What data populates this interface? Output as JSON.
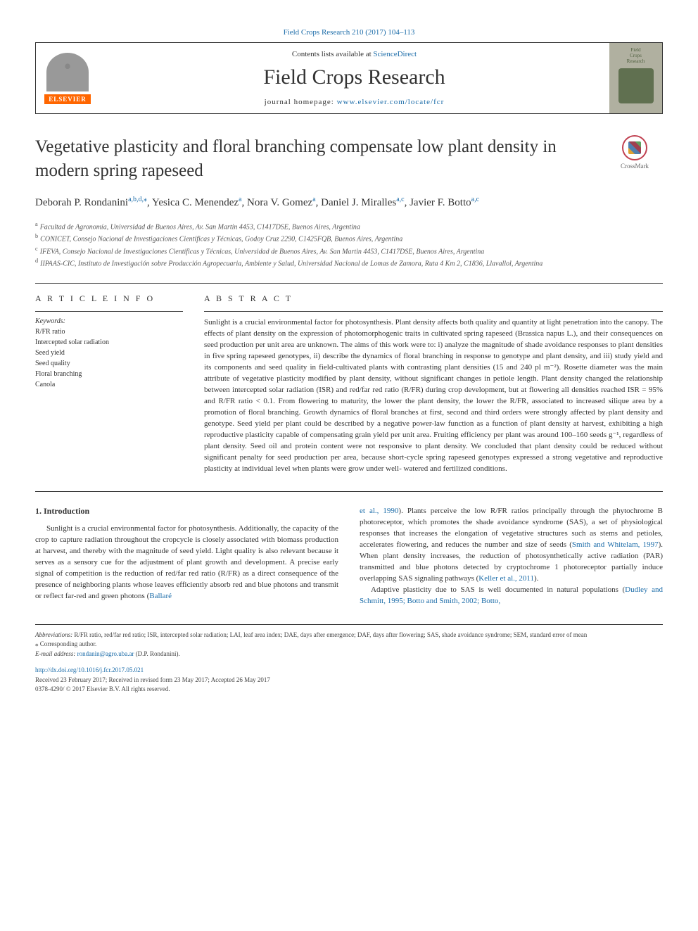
{
  "journal_ref": "Field Crops Research 210 (2017) 104–113",
  "contents_at": "Contents lists available at ",
  "sciencedirect": "ScienceDirect",
  "journal_name": "Field Crops Research",
  "homepage_label": "journal homepage: ",
  "homepage_url": "www.elsevier.com/locate/fcr",
  "elsevier": "ELSEVIER",
  "cover_text1": "Field",
  "cover_text2": "Crops",
  "cover_text3": "Research",
  "article_title": "Vegetative plasticity and floral branching compensate low plant density in modern spring rapeseed",
  "crossmark": "CrossMark",
  "authors": {
    "a1": "Deborah P. Rondanini",
    "a1_aff": "a,b,d,",
    "a1_corr": "⁎",
    "a2": "Yesica C. Menendez",
    "a2_aff": "a",
    "a3": "Nora V. Gomez",
    "a3_aff": "a",
    "a4": "Daniel J. Miralles",
    "a4_aff": "a,c",
    "a5": "Javier F. Botto",
    "a5_aff": "a,c"
  },
  "affiliations": {
    "a": "Facultad de Agronomía, Universidad de Buenos Aires, Av. San Martin 4453, C1417DSE, Buenos Aires, Argentina",
    "b": "CONICET, Consejo Nacional de Investigaciones Científicas y Técnicas, Godoy Cruz 2290, C1425FQB, Buenos Aires, Argentina",
    "c": "IFEVA, Consejo Nacional de Investigaciones Científicas y Técnicas, Universidad de Buenos Aires, Av. San Martin 4453, C1417DSE, Buenos Aires, Argentina",
    "d": "IIPAAS-CIC, Instituto de Investigación sobre Producción Agropecuaria, Ambiente y Salud, Universidad Nacional de Lomas de Zamora, Ruta 4 Km 2, C1836, Llavallol, Argentina"
  },
  "article_info_heading": "A R T I C L E  I N F O",
  "keywords_label": "Keywords:",
  "keywords": [
    "R/FR ratio",
    "Intercepted solar radiation",
    "Seed yield",
    "Seed quality",
    "Floral branching",
    "Canola"
  ],
  "abstract_heading": "A B S T R A C T",
  "abstract": "Sunlight is a crucial environmental factor for photosynthesis. Plant density affects both quality and quantity at light penetration into the canopy. The effects of plant density on the expression of photomorphogenic traits in cultivated spring rapeseed (Brassica napus L.), and their consequences on seed production per unit area are unknown. The aims of this work were to: i) analyze the magnitude of shade avoidance responses to plant densities in five spring rapeseed genotypes, ii) describe the dynamics of floral branching in response to genotype and plant density, and iii) study yield and its components and seed quality in field-cultivated plants with contrasting plant densities (15 and 240 pl m⁻²). Rosette diameter was the main attribute of vegetative plasticity modified by plant density, without significant changes in petiole length. Plant density changed the relationship between intercepted solar radiation (ISR) and red/far red ratio (R/FR) during crop development, but at flowering all densities reached ISR = 95% and R/FR ratio < 0.1. From flowering to maturity, the lower the plant density, the lower the R/FR, associated to increased silique area by a promotion of floral branching. Growth dynamics of floral branches at first, second and third orders were strongly affected by plant density and genotype. Seed yield per plant could be described by a negative power-law function as a function of plant density at harvest, exhibiting a high reproductive plasticity capable of compensating grain yield per unit area. Fruiting efficiency per plant was around 100–160 seeds g⁻¹, regardless of plant density. Seed oil and protein content were not responsive to plant density. We concluded that plant density could be reduced without significant penalty for seed production per area, because short-cycle spring rapeseed genotypes expressed a strong vegetative and reproductive plasticity at individual level when plants were grow under well- watered and fertilized conditions.",
  "intro_heading": "1. Introduction",
  "intro_p1": "Sunlight is a crucial environmental factor for photosynthesis. Additionally, the capacity of the crop to capture radiation throughout the cropcycle is closely associated with biomass production at harvest, and thereby with the magnitude of seed yield. Light quality is also relevant because it serves as a sensory cue for the adjustment of plant growth and development. A precise early signal of competition is the reduction of red/far red ratio (R/FR) as a direct consequence of the presence of neighboring plants whose leaves efficiently absorb red and blue photons and transmit or reflect far-red and green photons (",
  "intro_p1_link": "Ballaré",
  "intro_p2_link1": "et al., 1990",
  "intro_p2a": "). Plants perceive the low R/FR ratios principally through the phytochrome B photoreceptor, which promotes the shade avoidance syndrome (SAS), a set of physiological responses that increases the elongation of vegetative structures such as stems and petioles, accelerates flowering, and reduces the number and size of seeds (",
  "intro_p2_link2": "Smith and Whitelam, 1997",
  "intro_p2b": "). When plant density increases, the reduction of photosynthetically active radiation (PAR) transmitted and blue photons detected by cryptochrome 1 photoreceptor partially induce overlapping SAS signaling pathways (",
  "intro_p2_link3": "Keller et al., 2011",
  "intro_p2c": ").",
  "intro_p3a": "Adaptive plasticity due to SAS is well documented in natural populations (",
  "intro_p3_link": "Dudley and Schmitt, 1995; Botto and Smith, 2002; Botto,",
  "abbrev_label": "Abbreviations:",
  "abbrev": " R/FR ratio, red/far red ratio; ISR, intercepted solar radiation; LAI, leaf area index; DAE, days after emergence; DAF, days after flowering; SAS, shade avoidance syndrome; SEM, standard error of mean",
  "corr_label": "⁎ Corresponding author.",
  "email_label": "E-mail address: ",
  "email": "rondanin@agro.uba.ar",
  "email_suffix": " (D.P. Rondanini).",
  "doi": "http://dx.doi.org/10.1016/j.fcr.2017.05.021",
  "received": "Received 23 February 2017; Received in revised form 23 May 2017; Accepted 26 May 2017",
  "copyright": "0378-4290/ © 2017 Elsevier B.V. All rights reserved."
}
